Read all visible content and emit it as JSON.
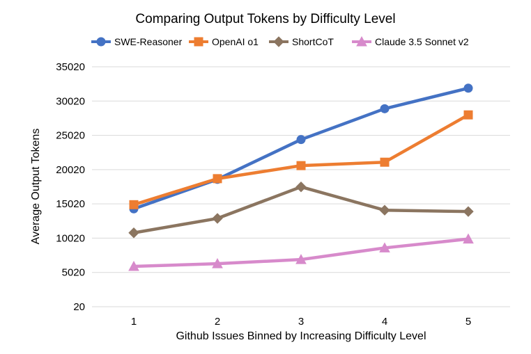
{
  "chart_data": {
    "type": "line",
    "title": "Comparing Output Tokens by Difficulty Level",
    "xlabel": "Github Issues Binned by Increasing Difficulty Level",
    "ylabel": "Average Output Tokens",
    "categories": [
      "1",
      "2",
      "3",
      "4",
      "5"
    ],
    "yticks": [
      "20",
      "5020",
      "10020",
      "15020",
      "20020",
      "25020",
      "30020",
      "35020"
    ],
    "ylim": [
      20,
      35020
    ],
    "grid": true,
    "legend_position": "top",
    "series": [
      {
        "name": "SWE-Reasoner",
        "color": "#4472C4",
        "marker": "circle",
        "values": [
          14300,
          18600,
          24400,
          28900,
          31900
        ]
      },
      {
        "name": "OpenAI o1",
        "color": "#ED7D31",
        "marker": "square",
        "values": [
          14900,
          18700,
          20600,
          21100,
          28000
        ]
      },
      {
        "name": "ShortCoT",
        "color": "#8B7560",
        "marker": "diamond",
        "values": [
          10800,
          12900,
          17500,
          14100,
          13900
        ]
      },
      {
        "name": "Claude 3.5 Sonnet v2",
        "color": "#D78ACB",
        "marker": "triangle",
        "values": [
          5900,
          6300,
          6900,
          8600,
          9900
        ]
      }
    ]
  }
}
